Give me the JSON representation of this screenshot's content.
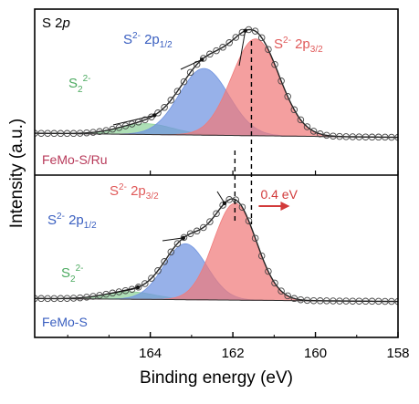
{
  "chart_data": {
    "type": "area",
    "xlabel": "Binding energy (eV)",
    "ylabel": "Intensity (a.u.)",
    "xlim": [
      166.8,
      158
    ],
    "x_ticks": [
      164,
      162,
      160,
      158
    ],
    "x_tick_labels": [
      "164",
      "162",
      "160",
      "158"
    ],
    "panels": [
      {
        "corner_label": {
          "base": "S 2",
          "italic": "p"
        },
        "sample_label": "FeMo-S/Ru",
        "sample_color": "#b83a5a",
        "baseline": [
          0.05,
          0.012
        ],
        "components": [
          {
            "label": {
              "base": "S",
              "sup": "2-",
              "mid": " 2p",
              "sub": "3/2"
            },
            "center": 161.45,
            "amp": 0.9,
            "sigma": 0.58,
            "fill": "#f07a7a",
            "label_color": "#e05a5a"
          },
          {
            "label": {
              "base": "S",
              "sup": "2-",
              "mid": " 2p",
              "sub": "1/2"
            },
            "center": 162.7,
            "amp": 0.62,
            "sigma": 0.6,
            "fill": "#6f93e0",
            "label_color": "#3a5fc0"
          },
          {
            "label": {
              "base": "S",
              "sub": "2",
              "sup": "2-"
            },
            "center": 164.1,
            "amp": 0.1,
            "sigma": 0.65,
            "fill": "#8fd39a",
            "label_color": "#4caa60"
          }
        ],
        "shift_marker": {
          "from": 161.95,
          "to": 161.55
        }
      },
      {
        "sample_label": "FeMo-S",
        "sample_color": "#3a5fc0",
        "baseline": [
          0.04,
          0.012
        ],
        "components": [
          {
            "label": {
              "base": "S",
              "sup": "2-",
              "mid": " 2p",
              "sub": "3/2"
            },
            "center": 161.95,
            "amp": 0.9,
            "sigma": 0.52,
            "fill": "#f07a7a",
            "label_color": "#e05a5a"
          },
          {
            "label": {
              "base": "S",
              "sup": "2-",
              "mid": " 2p",
              "sub": "1/2"
            },
            "center": 163.15,
            "amp": 0.52,
            "sigma": 0.52,
            "fill": "#6f93e0",
            "label_color": "#3a5fc0"
          },
          {
            "label": {
              "base": "S",
              "sub": "2",
              "sup": "2-"
            },
            "center": 164.5,
            "amp": 0.07,
            "sigma": 0.6,
            "fill": "#8fd39a",
            "label_color": "#4caa60"
          }
        ]
      }
    ],
    "shift_annotation": {
      "text": "0.4 eV",
      "color": "#d23a3a"
    }
  }
}
